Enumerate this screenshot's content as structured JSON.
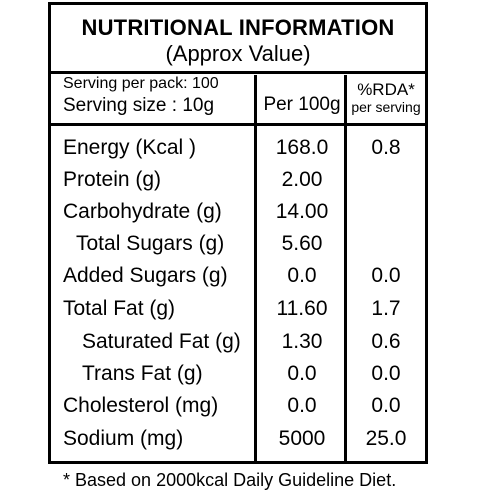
{
  "header": {
    "title": "NUTRITIONAL INFORMATION",
    "subtitle": "(Approx Value)"
  },
  "serving": {
    "per_pack": "Serving per pack: 100",
    "size": "Serving size : 10g"
  },
  "columns": {
    "per100": "Per 100g",
    "rda_line1": "%RDA*",
    "rda_line2": "per serving"
  },
  "rows": [
    {
      "name": "Energy (Kcal )",
      "per100": "168.0",
      "rda": "0.8"
    },
    {
      "name": "Protein (g)",
      "per100": "2.00",
      "rda": ""
    },
    {
      "name": "Carbohydrate (g)",
      "per100": "14.00",
      "rda": ""
    },
    {
      "name": "Total Sugars (g)",
      "per100": "5.60",
      "rda": ""
    },
    {
      "name": "Added Sugars (g)",
      "per100": "0.0",
      "rda": "0.0"
    },
    {
      "name": "Total Fat (g)",
      "per100": "11.60",
      "rda": "1.7"
    },
    {
      "name": "Saturated Fat (g)",
      "per100": "1.30",
      "rda": "0.6"
    },
    {
      "name": "Trans Fat (g)",
      "per100": "0.0",
      "rda": "0.0"
    },
    {
      "name": "Cholesterol (mg)",
      "per100": "0.0",
      "rda": "0.0"
    },
    {
      "name": "Sodium (mg)",
      "per100": "5000",
      "rda": "25.0"
    }
  ],
  "footnote": "* Based on 2000kcal Daily Guideline Diet."
}
